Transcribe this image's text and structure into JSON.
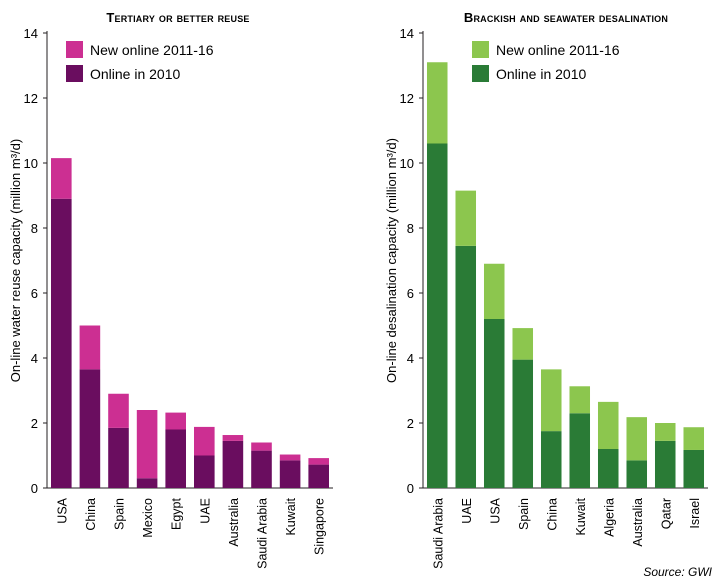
{
  "source_note": "Source: GWI",
  "chart_data": [
    {
      "type": "bar",
      "stacked": true,
      "title": "Tertiary or better reuse",
      "xlabel": "",
      "ylabel": "On-line water reuse capacity (million m³/d)",
      "ylim": [
        0,
        14
      ],
      "yticks": [
        0,
        2,
        4,
        6,
        8,
        10,
        12,
        14
      ],
      "grid": false,
      "legend_position": "top-left",
      "categories": [
        "USA",
        "China",
        "Spain",
        "Mexico",
        "Egypt",
        "UAE",
        "Australia",
        "Saudi Arabia",
        "Kuwait",
        "Singapore"
      ],
      "series": [
        {
          "name": "Online in 2010",
          "color": "#6a0d5f",
          "values": [
            8.9,
            3.65,
            1.85,
            0.3,
            1.8,
            1.0,
            1.45,
            1.15,
            0.85,
            0.72
          ]
        },
        {
          "name": "New online 2011-16",
          "color": "#cc2f92",
          "values": [
            1.25,
            1.35,
            1.05,
            2.1,
            0.52,
            0.88,
            0.18,
            0.25,
            0.18,
            0.2
          ]
        }
      ]
    },
    {
      "type": "bar",
      "stacked": true,
      "title": "Brackish and seawater desalination",
      "xlabel": "",
      "ylabel": "On-line desalination capacity (million m³/d)",
      "ylim": [
        0,
        14
      ],
      "yticks": [
        0,
        2,
        4,
        6,
        8,
        10,
        12,
        14
      ],
      "grid": false,
      "legend_position": "top-left",
      "categories": [
        "Saudi Arabia",
        "UAE",
        "USA",
        "Spain",
        "China",
        "Kuwait",
        "Algeria",
        "Australia",
        "Qatar",
        "Israel"
      ],
      "series": [
        {
          "name": "Online in 2010",
          "color": "#2a7b36",
          "values": [
            10.6,
            7.45,
            5.2,
            3.95,
            1.75,
            2.3,
            1.2,
            0.85,
            1.45,
            1.17
          ]
        },
        {
          "name": "New online 2011-16",
          "color": "#8cc64e",
          "values": [
            2.5,
            1.7,
            1.7,
            0.97,
            1.9,
            0.83,
            1.45,
            1.33,
            0.55,
            0.7
          ]
        }
      ]
    }
  ]
}
